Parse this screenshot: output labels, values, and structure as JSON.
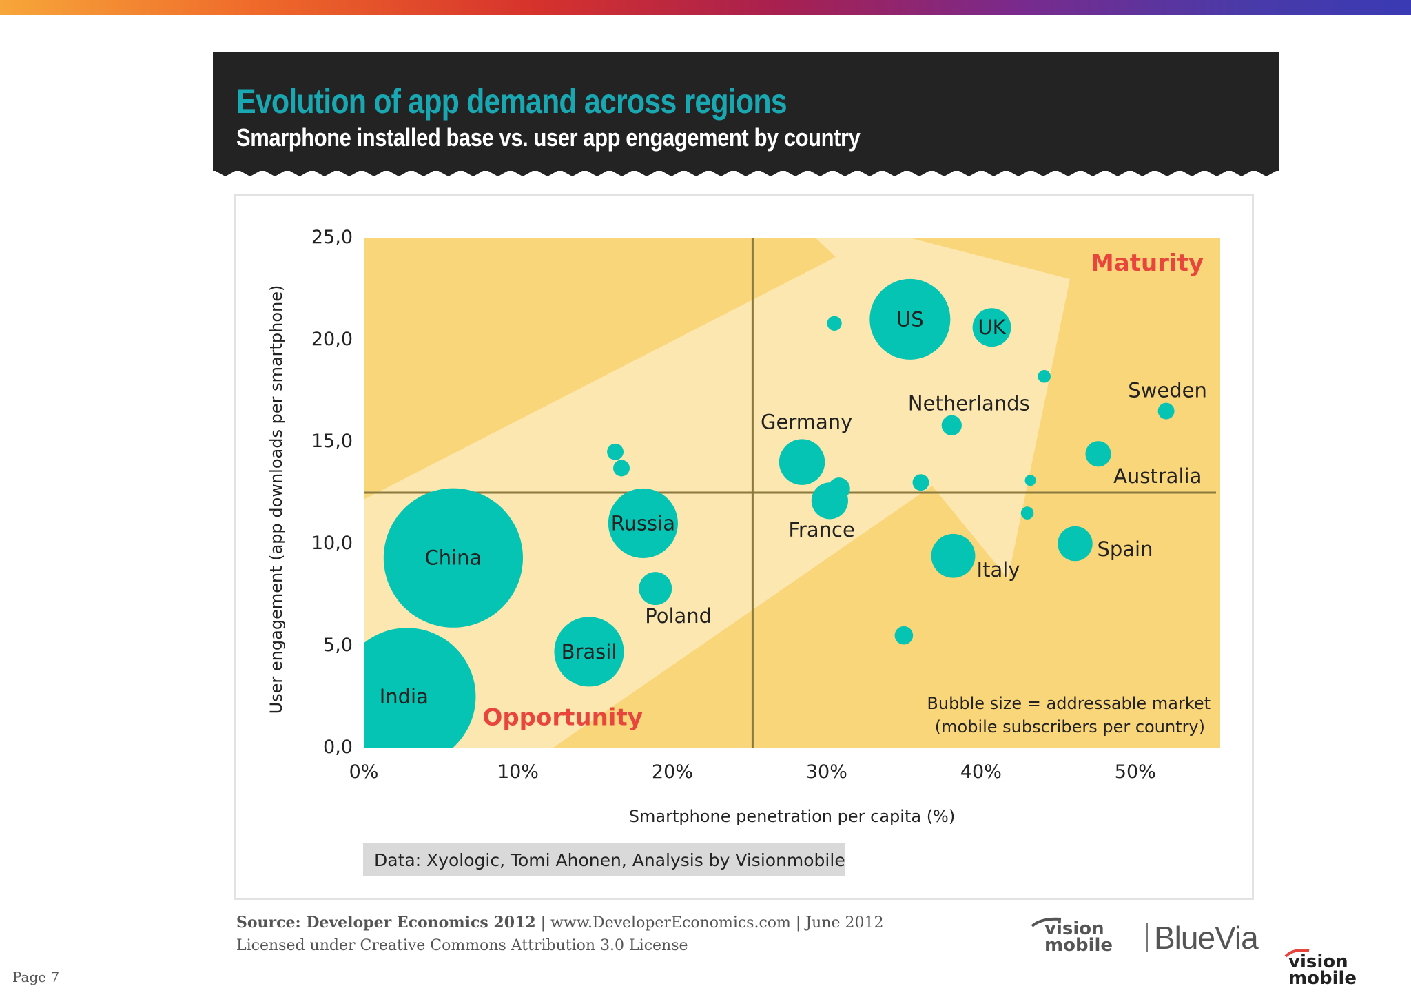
{
  "header": {
    "title": "Evolution of app demand across regions",
    "subtitle": "Smarphone installed base vs. user app engagement by country"
  },
  "chart_data": {
    "type": "scatter",
    "title": "Evolution of app demand across regions",
    "subtitle": "Smarphone installed base vs. user app engagement by country",
    "xlabel": "Smartphone penetration per capita (%)",
    "ylabel": "User engagement (app downloads per smartphone)",
    "xlim": [
      0,
      55.5
    ],
    "ylim": [
      0,
      25
    ],
    "x_ticks": [
      "0%",
      "10%",
      "20%",
      "30%",
      "40%",
      "50%"
    ],
    "y_ticks": [
      "0,0",
      "5,0",
      "10,0",
      "15,0",
      "20,0",
      "25,0"
    ],
    "quadrant_dividers": {
      "x": 25.2,
      "y": 12.5
    },
    "quadrant_labels": {
      "top_right": "Maturity",
      "bottom_left": "Opportunity"
    },
    "size_note_line1": "Bubble size = addressable market",
    "size_note_line2": "(mobile subscribers per country)",
    "colors": {
      "bubble": "#05c4b3",
      "background": "#fad67a",
      "arrow": "#fde7b0",
      "divider": "#8a7a3e",
      "quadrant_label": "#e8453c"
    },
    "series": [
      {
        "points": [
          {
            "label": "India",
            "x": 2.8,
            "y": 2.5,
            "size": 75
          },
          {
            "label": "China",
            "x": 5.8,
            "y": 9.3,
            "size": 76
          },
          {
            "label": "Brasil",
            "x": 14.6,
            "y": 4.7,
            "size": 38
          },
          {
            "label": "Russia",
            "x": 18.1,
            "y": 11.0,
            "size": 38
          },
          {
            "label": "Poland",
            "x": 18.9,
            "y": 7.8,
            "size": 18
          },
          {
            "label": "",
            "x": 16.3,
            "y": 14.5,
            "size": 9
          },
          {
            "label": "",
            "x": 16.7,
            "y": 13.7,
            "size": 9
          },
          {
            "label": "Germany",
            "x": 28.4,
            "y": 14.0,
            "size": 25
          },
          {
            "label": "France",
            "x": 30.2,
            "y": 12.1,
            "size": 20
          },
          {
            "label": "",
            "x": 30.8,
            "y": 12.7,
            "size": 12
          },
          {
            "label": "",
            "x": 30.5,
            "y": 20.8,
            "size": 8
          },
          {
            "label": "US",
            "x": 35.4,
            "y": 21.0,
            "size": 44
          },
          {
            "label": "UK",
            "x": 40.7,
            "y": 20.6,
            "size": 21
          },
          {
            "label": "Netherlands",
            "x": 38.1,
            "y": 15.8,
            "size": 11
          },
          {
            "label": "",
            "x": 36.1,
            "y": 13.0,
            "size": 9
          },
          {
            "label": "",
            "x": 44.1,
            "y": 18.2,
            "size": 7
          },
          {
            "label": "",
            "x": 43.2,
            "y": 13.1,
            "size": 6
          },
          {
            "label": "",
            "x": 43.0,
            "y": 11.5,
            "size": 7
          },
          {
            "label": "Italy",
            "x": 38.2,
            "y": 9.4,
            "size": 24
          },
          {
            "label": "Spain",
            "x": 46.1,
            "y": 10.0,
            "size": 19
          },
          {
            "label": "Sweden",
            "x": 52.0,
            "y": 16.5,
            "size": 9
          },
          {
            "label": "Australia",
            "x": 47.6,
            "y": 14.4,
            "size": 14
          },
          {
            "label": "",
            "x": 35.0,
            "y": 5.5,
            "size": 10
          }
        ]
      }
    ],
    "source_note": "Data: Xyologic, Tomi Ahonen, Analysis by Visionmobile"
  },
  "footer": {
    "source_bold": "Source: Developer Economics 2012",
    "source_rest": " | www.DeveloperEconomics.com | June 2012",
    "license": "Licensed under Creative Commons Attribution 3.0 License",
    "logo_vision_line1": "vision",
    "logo_vision_line2": "mobile",
    "logo_bluevia": "BlueVia",
    "page_number": "Page 7"
  }
}
